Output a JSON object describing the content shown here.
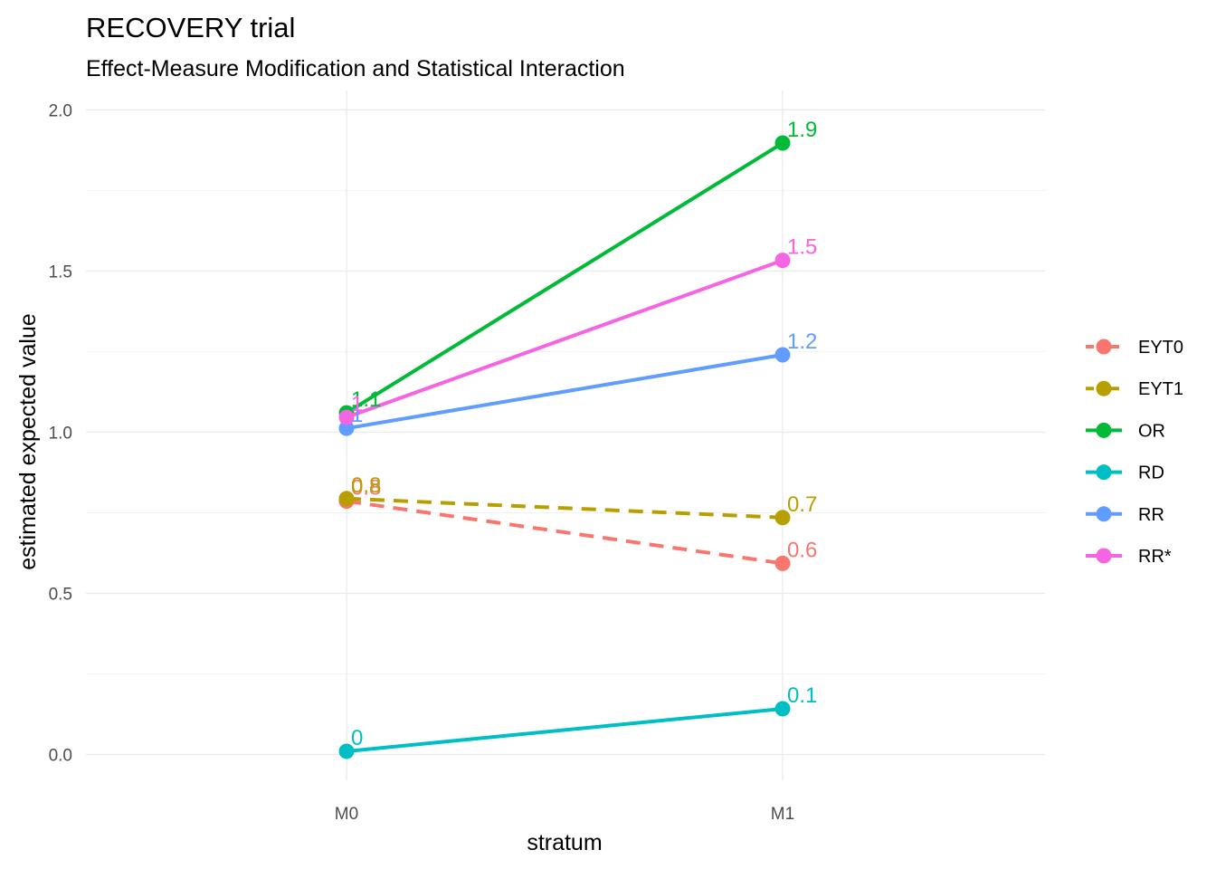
{
  "chart_data": {
    "type": "line",
    "title": "RECOVERY trial",
    "subtitle": "Effect-Measure Modification and Statistical Interaction",
    "xlabel": "stratum",
    "ylabel": "estimated expected value",
    "categories": [
      "M0",
      "M1"
    ],
    "ylim": [
      -0.08,
      2.06
    ],
    "yticks": [
      0.0,
      0.5,
      1.0,
      1.5,
      2.0
    ],
    "ytick_labels": [
      "0.0",
      "0.5",
      "1.0",
      "1.5",
      "2.0"
    ],
    "grid": true,
    "legend_position": "right",
    "series": [
      {
        "name": "EYT0",
        "values": [
          0.786,
          0.593
        ],
        "labels": [
          "0.8",
          "0.6"
        ],
        "color": "#F8766D",
        "dash": "dashed"
      },
      {
        "name": "EYT1",
        "values": [
          0.794,
          0.735
        ],
        "labels": [
          "0.8",
          "0.7"
        ],
        "color": "#B79F00",
        "dash": "dashed"
      },
      {
        "name": "OR",
        "values": [
          1.06,
          1.897
        ],
        "labels": [
          "1.1",
          "1.9"
        ],
        "color": "#00BA38",
        "dash": "solid"
      },
      {
        "name": "RD",
        "values": [
          0.01,
          0.142
        ],
        "labels": [
          "0",
          "0.1"
        ],
        "color": "#00BFC4",
        "dash": "solid"
      },
      {
        "name": "RR",
        "values": [
          1.012,
          1.24
        ],
        "labels": [
          "1",
          "1.2"
        ],
        "color": "#619CFF",
        "dash": "solid"
      },
      {
        "name": "RR*",
        "values": [
          1.046,
          1.533
        ],
        "labels": [
          "1",
          "1.5"
        ],
        "color": "#F564E3",
        "dash": "solid"
      }
    ]
  }
}
